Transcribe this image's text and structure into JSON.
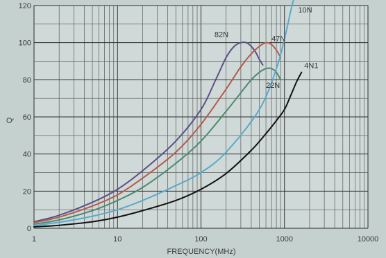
{
  "chart_data": {
    "type": "line",
    "xlabel": "FREQUENCY(MHz)",
    "ylabel": "Q",
    "x_scale": "log",
    "xlim": [
      1,
      10000
    ],
    "ylim": [
      0,
      120
    ],
    "x_ticks": [
      "1",
      "10",
      "100",
      "1000",
      "10000"
    ],
    "y_ticks": [
      "0",
      "20",
      "40",
      "60",
      "80",
      "100",
      "120"
    ],
    "grid": true,
    "series": [
      {
        "name": "82N",
        "color": "#5c4f86",
        "x": [
          1,
          2,
          5,
          10,
          20,
          50,
          100,
          150,
          200,
          250,
          300,
          350,
          400,
          450,
          500,
          550
        ],
        "y": [
          3.5,
          7,
          14,
          21,
          31,
          47,
          64,
          80,
          92,
          98,
          100,
          100,
          98,
          95,
          91,
          88
        ]
      },
      {
        "name": "47N",
        "color": "#b35b4c",
        "x": [
          1,
          2,
          5,
          10,
          20,
          50,
          100,
          200,
          300,
          400,
          500,
          600,
          700,
          800,
          900
        ],
        "y": [
          3,
          6,
          12,
          18,
          27,
          41,
          56,
          75,
          87,
          94,
          98,
          100,
          99,
          96,
          92
        ]
      },
      {
        "name": "22N",
        "color": "#4a8a6e",
        "x": [
          1,
          2,
          5,
          10,
          20,
          50,
          100,
          200,
          300,
          400,
          500,
          600,
          700,
          800,
          900
        ],
        "y": [
          2.2,
          4.5,
          9.5,
          15,
          22,
          35,
          47,
          63,
          73,
          80,
          84,
          86,
          86,
          84,
          80
        ]
      },
      {
        "name": "10N",
        "color": "#5aa9cd",
        "x": [
          1,
          2,
          5,
          10,
          20,
          50,
          100,
          200,
          500,
          800,
          1000,
          1200,
          1300
        ],
        "y": [
          1.5,
          3.2,
          6.5,
          10,
          15,
          23,
          30,
          41,
          64,
          86,
          102,
          118,
          124
        ]
      },
      {
        "name": "4N1",
        "color": "#111111",
        "x": [
          1,
          2,
          5,
          10,
          20,
          50,
          100,
          200,
          400,
          600,
          800,
          1000,
          1200,
          1400,
          1600
        ],
        "y": [
          0.8,
          1.6,
          3.5,
          6,
          9.5,
          15,
          21,
          29.5,
          42,
          51,
          58,
          64,
          72,
          79,
          84
        ]
      }
    ]
  }
}
